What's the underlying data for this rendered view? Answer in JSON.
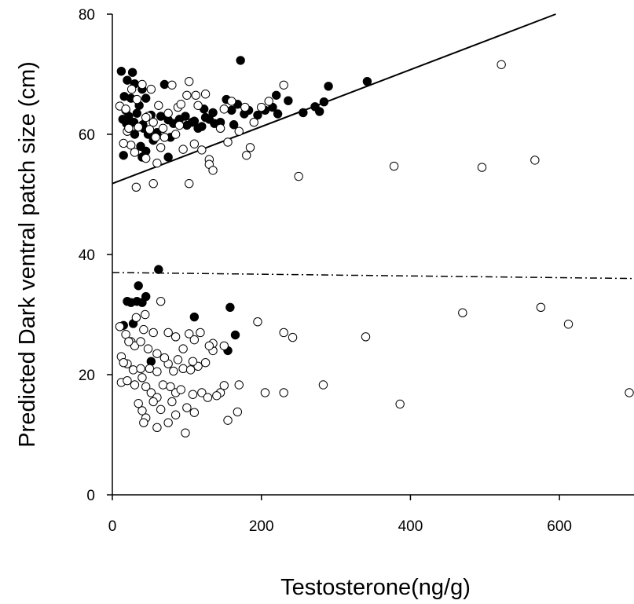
{
  "chart_data": {
    "type": "scatter",
    "title": "",
    "xlabel": "Testosterone(ng/g)",
    "ylabel": "Predicted Dark ventral patch size (cm)",
    "xlim": [
      0,
      700
    ],
    "ylim": [
      0,
      80
    ],
    "xticks": [
      0,
      200,
      400,
      600
    ],
    "yticks": [
      0,
      20,
      40,
      60,
      80
    ],
    "grid": false,
    "series": [
      {
        "marker": "filled",
        "color": "#000000",
        "points": [
          [
            12,
            70.5
          ],
          [
            27,
            70.3
          ],
          [
            20,
            69.0
          ],
          [
            30,
            68.4
          ],
          [
            70,
            68.3
          ],
          [
            40,
            67.5
          ],
          [
            172,
            72.3
          ],
          [
            16,
            66.3
          ],
          [
            25,
            66.0
          ],
          [
            45,
            66.0
          ],
          [
            36,
            64.8
          ],
          [
            18,
            64.0
          ],
          [
            33,
            63.5
          ],
          [
            22,
            63.0
          ],
          [
            14,
            62.5
          ],
          [
            29,
            62.0
          ],
          [
            19,
            61.8
          ],
          [
            41,
            61.6
          ],
          [
            52,
            63.2
          ],
          [
            65,
            63.0
          ],
          [
            75,
            62.4
          ],
          [
            82,
            61.8
          ],
          [
            90,
            62.5
          ],
          [
            98,
            63.0
          ],
          [
            107,
            62.0
          ],
          [
            115,
            61.0
          ],
          [
            123,
            64.2
          ],
          [
            130,
            62.5
          ],
          [
            137,
            61.8
          ],
          [
            145,
            62.0
          ],
          [
            153,
            65.8
          ],
          [
            160,
            64.0
          ],
          [
            163,
            61.6
          ],
          [
            168,
            65.0
          ],
          [
            177,
            63.4
          ],
          [
            183,
            64.0
          ],
          [
            195,
            63.2
          ],
          [
            205,
            64.0
          ],
          [
            215,
            64.5
          ],
          [
            220,
            66.5
          ],
          [
            222,
            63.4
          ],
          [
            236,
            65.6
          ],
          [
            256,
            63.6
          ],
          [
            272,
            64.6
          ],
          [
            278,
            63.8
          ],
          [
            284,
            65.4
          ],
          [
            290,
            68.0
          ],
          [
            342,
            68.8
          ],
          [
            42,
            61.0
          ],
          [
            48,
            60.0
          ],
          [
            55,
            59.0
          ],
          [
            30,
            60.0
          ],
          [
            38,
            58.0
          ],
          [
            45,
            57.2
          ],
          [
            78,
            59.5
          ],
          [
            15,
            56.5
          ],
          [
            40,
            56.2
          ],
          [
            75,
            56.2
          ],
          [
            60,
            60.3
          ],
          [
            100,
            61.5
          ],
          [
            125,
            62.8
          ],
          [
            110,
            62.2
          ],
          [
            120,
            61.3
          ],
          [
            135,
            63.6
          ],
          [
            62,
            37.5
          ],
          [
            35,
            34.8
          ],
          [
            45,
            33.0
          ],
          [
            20,
            32.2
          ],
          [
            25,
            32.0
          ],
          [
            33,
            32.2
          ],
          [
            40,
            32.0
          ],
          [
            158,
            31.2
          ],
          [
            110,
            29.6
          ],
          [
            15,
            28.2
          ],
          [
            28,
            28.5
          ],
          [
            165,
            26.6
          ],
          [
            155,
            24.0
          ],
          [
            52,
            22.2
          ]
        ]
      },
      {
        "marker": "open",
        "color": "#000000",
        "points": [
          [
            10,
            64.7
          ],
          [
            40,
            68.3
          ],
          [
            52,
            67.5
          ],
          [
            80,
            68.2
          ],
          [
            100,
            66.5
          ],
          [
            112,
            66.5
          ],
          [
            125,
            66.7
          ],
          [
            103,
            68.8
          ],
          [
            150,
            64.2
          ],
          [
            160,
            65.5
          ],
          [
            210,
            65.5
          ],
          [
            230,
            68.2
          ],
          [
            20,
            60.5
          ],
          [
            35,
            61.2
          ],
          [
            50,
            60.8
          ],
          [
            58,
            59.5
          ],
          [
            65,
            57.8
          ],
          [
            70,
            59.5
          ],
          [
            85,
            60.0
          ],
          [
            95,
            57.5
          ],
          [
            110,
            58.4
          ],
          [
            120,
            57.4
          ],
          [
            130,
            55.8
          ],
          [
            130,
            55.0
          ],
          [
            135,
            54.0
          ],
          [
            155,
            58.7
          ],
          [
            185,
            57.8
          ],
          [
            180,
            56.5
          ],
          [
            25,
            58.2
          ],
          [
            30,
            57.0
          ],
          [
            45,
            56.0
          ],
          [
            60,
            55.2
          ],
          [
            55,
            51.8
          ],
          [
            32,
            51.2
          ],
          [
            103,
            51.8
          ],
          [
            250,
            53.0
          ],
          [
            378,
            54.7
          ],
          [
            496,
            54.5
          ],
          [
            567,
            55.7
          ],
          [
            522,
            71.6
          ],
          [
            145,
            61.0
          ],
          [
            170,
            60.5
          ],
          [
            190,
            62.0
          ],
          [
            200,
            64.5
          ],
          [
            75,
            63.5
          ],
          [
            88,
            64.5
          ],
          [
            15,
            58.5
          ],
          [
            22,
            61.0
          ],
          [
            10,
            28.0
          ],
          [
            18,
            26.7
          ],
          [
            25,
            25.5
          ],
          [
            30,
            24.8
          ],
          [
            38,
            25.5
          ],
          [
            42,
            27.5
          ],
          [
            48,
            24.3
          ],
          [
            55,
            27.0
          ],
          [
            65,
            32.2
          ],
          [
            75,
            27.0
          ],
          [
            85,
            26.3
          ],
          [
            95,
            24.3
          ],
          [
            103,
            26.8
          ],
          [
            110,
            25.8
          ],
          [
            118,
            27.0
          ],
          [
            125,
            22.0
          ],
          [
            135,
            24.0
          ],
          [
            150,
            24.8
          ],
          [
            195,
            28.8
          ],
          [
            230,
            27.0
          ],
          [
            242,
            26.2
          ],
          [
            340,
            26.3
          ],
          [
            470,
            30.3
          ],
          [
            575,
            31.2
          ],
          [
            612,
            28.4
          ],
          [
            12,
            23.0
          ],
          [
            20,
            21.8
          ],
          [
            28,
            20.8
          ],
          [
            38,
            21.0
          ],
          [
            50,
            21.0
          ],
          [
            60,
            20.5
          ],
          [
            75,
            21.8
          ],
          [
            82,
            20.6
          ],
          [
            95,
            21.0
          ],
          [
            105,
            20.8
          ],
          [
            115,
            21.4
          ],
          [
            12,
            18.7
          ],
          [
            20,
            19.0
          ],
          [
            30,
            18.3
          ],
          [
            40,
            19.5
          ],
          [
            45,
            18.0
          ],
          [
            52,
            17.0
          ],
          [
            60,
            16.2
          ],
          [
            68,
            18.3
          ],
          [
            78,
            18.0
          ],
          [
            85,
            17.0
          ],
          [
            92,
            17.5
          ],
          [
            108,
            16.7
          ],
          [
            120,
            17.0
          ],
          [
            128,
            16.2
          ],
          [
            145,
            17.0
          ],
          [
            150,
            18.2
          ],
          [
            170,
            18.3
          ],
          [
            205,
            17.0
          ],
          [
            230,
            17.0
          ],
          [
            283,
            18.3
          ],
          [
            386,
            15.1
          ],
          [
            695,
            17.0
          ],
          [
            40,
            14.0
          ],
          [
            45,
            12.8
          ],
          [
            42,
            12.0
          ],
          [
            60,
            11.2
          ],
          [
            75,
            12.0
          ],
          [
            85,
            13.3
          ],
          [
            98,
            10.3
          ],
          [
            110,
            13.7
          ],
          [
            155,
            12.4
          ],
          [
            168,
            13.8
          ],
          [
            55,
            15.5
          ],
          [
            35,
            15.2
          ],
          [
            65,
            14.2
          ],
          [
            80,
            15.5
          ],
          [
            100,
            14.5
          ],
          [
            140,
            16.5
          ],
          [
            22,
            25.5
          ],
          [
            32,
            29.5
          ],
          [
            44,
            30.0
          ],
          [
            15,
            22.0
          ],
          [
            88,
            22.5
          ],
          [
            135,
            25.2
          ],
          [
            130,
            24.8
          ],
          [
            60,
            23.5
          ],
          [
            70,
            22.8
          ],
          [
            108,
            22.2
          ],
          [
            18,
            64.2
          ],
          [
            48,
            63.0
          ],
          [
            62,
            64.8
          ],
          [
            92,
            65.0
          ],
          [
            115,
            64.8
          ],
          [
            26,
            67.5
          ],
          [
            33,
            65.8
          ],
          [
            45,
            62.8
          ],
          [
            55,
            62.0
          ],
          [
            68,
            61.0
          ],
          [
            90,
            61.5
          ],
          [
            178,
            64.5
          ]
        ]
      }
    ],
    "lines": [
      {
        "style": "solid",
        "x": [
          0,
          595
        ],
        "y": [
          51.8,
          80.0
        ]
      },
      {
        "style": "dash-dot",
        "x": [
          0,
          700
        ],
        "y": [
          37.0,
          36.0
        ]
      }
    ]
  }
}
